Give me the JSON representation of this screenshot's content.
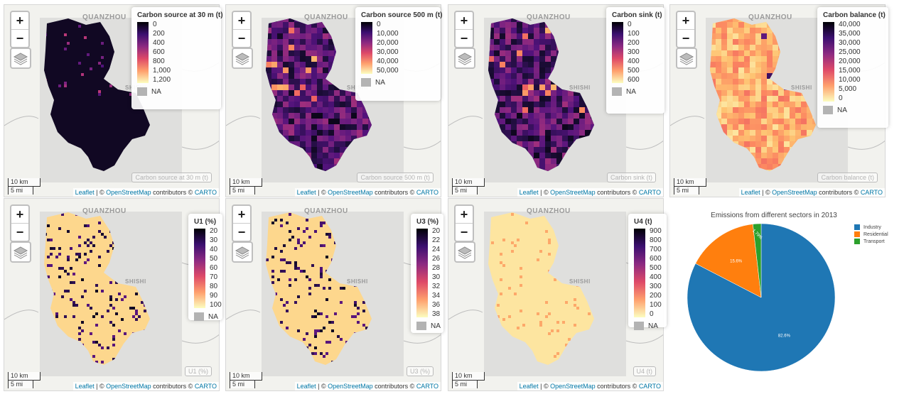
{
  "attribution": {
    "leaflet": "Leaflet",
    "sep": " | © ",
    "osm": "OpenStreetMap",
    "contrib": " contributors © ",
    "carto": "CARTO"
  },
  "scale": {
    "km": "10 km",
    "mi": "5 mi"
  },
  "zoom": {
    "in": "+",
    "out": "−"
  },
  "labels": {
    "quanzhou": "QUANZHOU",
    "shishi": "SHISHI"
  },
  "colors": {
    "land": "#d9d9d9",
    "water": "#f4f4f1",
    "magma_dark": "#180f3d",
    "na": "#b3b3b3"
  },
  "maps": [
    {
      "id": "cs30",
      "legend_title": "Carbon source at 30 m (t)",
      "ticks": [
        "0",
        "200",
        "400",
        "600",
        "800",
        "1,000",
        "1,200"
      ],
      "layer_label": "Carbon source at 30 m (t)",
      "na_label": "NA",
      "scheme": "dark"
    },
    {
      "id": "cs500",
      "legend_title": "Carbon source 500 m (t)",
      "ticks": [
        "0",
        "10,000",
        "20,000",
        "30,000",
        "40,000",
        "50,000"
      ],
      "layer_label": "Carbon source 500 m (t)",
      "na_label": "NA",
      "scheme": "grid-dark"
    },
    {
      "id": "sink",
      "legend_title": "Carbon sink (t)",
      "ticks": [
        "0",
        "100",
        "200",
        "300",
        "400",
        "500",
        "600"
      ],
      "layer_label": "Carbon sink (t)",
      "na_label": "NA",
      "scheme": "grid-dark"
    },
    {
      "id": "bal",
      "legend_title": "Carbon balance (t)",
      "ticks": [
        "40,000",
        "35,000",
        "30,000",
        "25,000",
        "20,000",
        "15,000",
        "10,000",
        "5,000",
        "0"
      ],
      "layer_label": "Carbon balance (t)",
      "na_label": "NA",
      "scheme": "grid-light"
    },
    {
      "id": "u1",
      "legend_title": "U1 (%)",
      "ticks": [
        "20",
        "30",
        "40",
        "50",
        "60",
        "70",
        "80",
        "90",
        "100"
      ],
      "layer_label": "U1 (%)",
      "na_label": "NA",
      "scheme": "light"
    },
    {
      "id": "u3",
      "legend_title": "U3 (%)",
      "ticks": [
        "20",
        "22",
        "24",
        "26",
        "28",
        "30",
        "32",
        "34",
        "36",
        "38"
      ],
      "layer_label": "U3 (%)",
      "na_label": "NA",
      "scheme": "light"
    },
    {
      "id": "u4",
      "legend_title": "U4 (t)",
      "ticks": [
        "900",
        "800",
        "700",
        "600",
        "500",
        "400",
        "300",
        "200",
        "100",
        "0"
      ],
      "layer_label": "U4 (t)",
      "na_label": "NA",
      "scheme": "pale"
    }
  ],
  "chart_data": {
    "type": "pie",
    "title": "Emissions from different sectors in 2013",
    "slices": [
      {
        "label": "Industry",
        "value": 82.6,
        "display": "82.6%",
        "color": "#1f77b4"
      },
      {
        "label": "Residential",
        "value": 15.6,
        "display": "15.6%",
        "color": "#ff7f0e"
      },
      {
        "label": "Transport",
        "value": 1.79,
        "display": "1.79%",
        "color": "#2ca02c"
      }
    ],
    "legend_position": "top-right"
  }
}
